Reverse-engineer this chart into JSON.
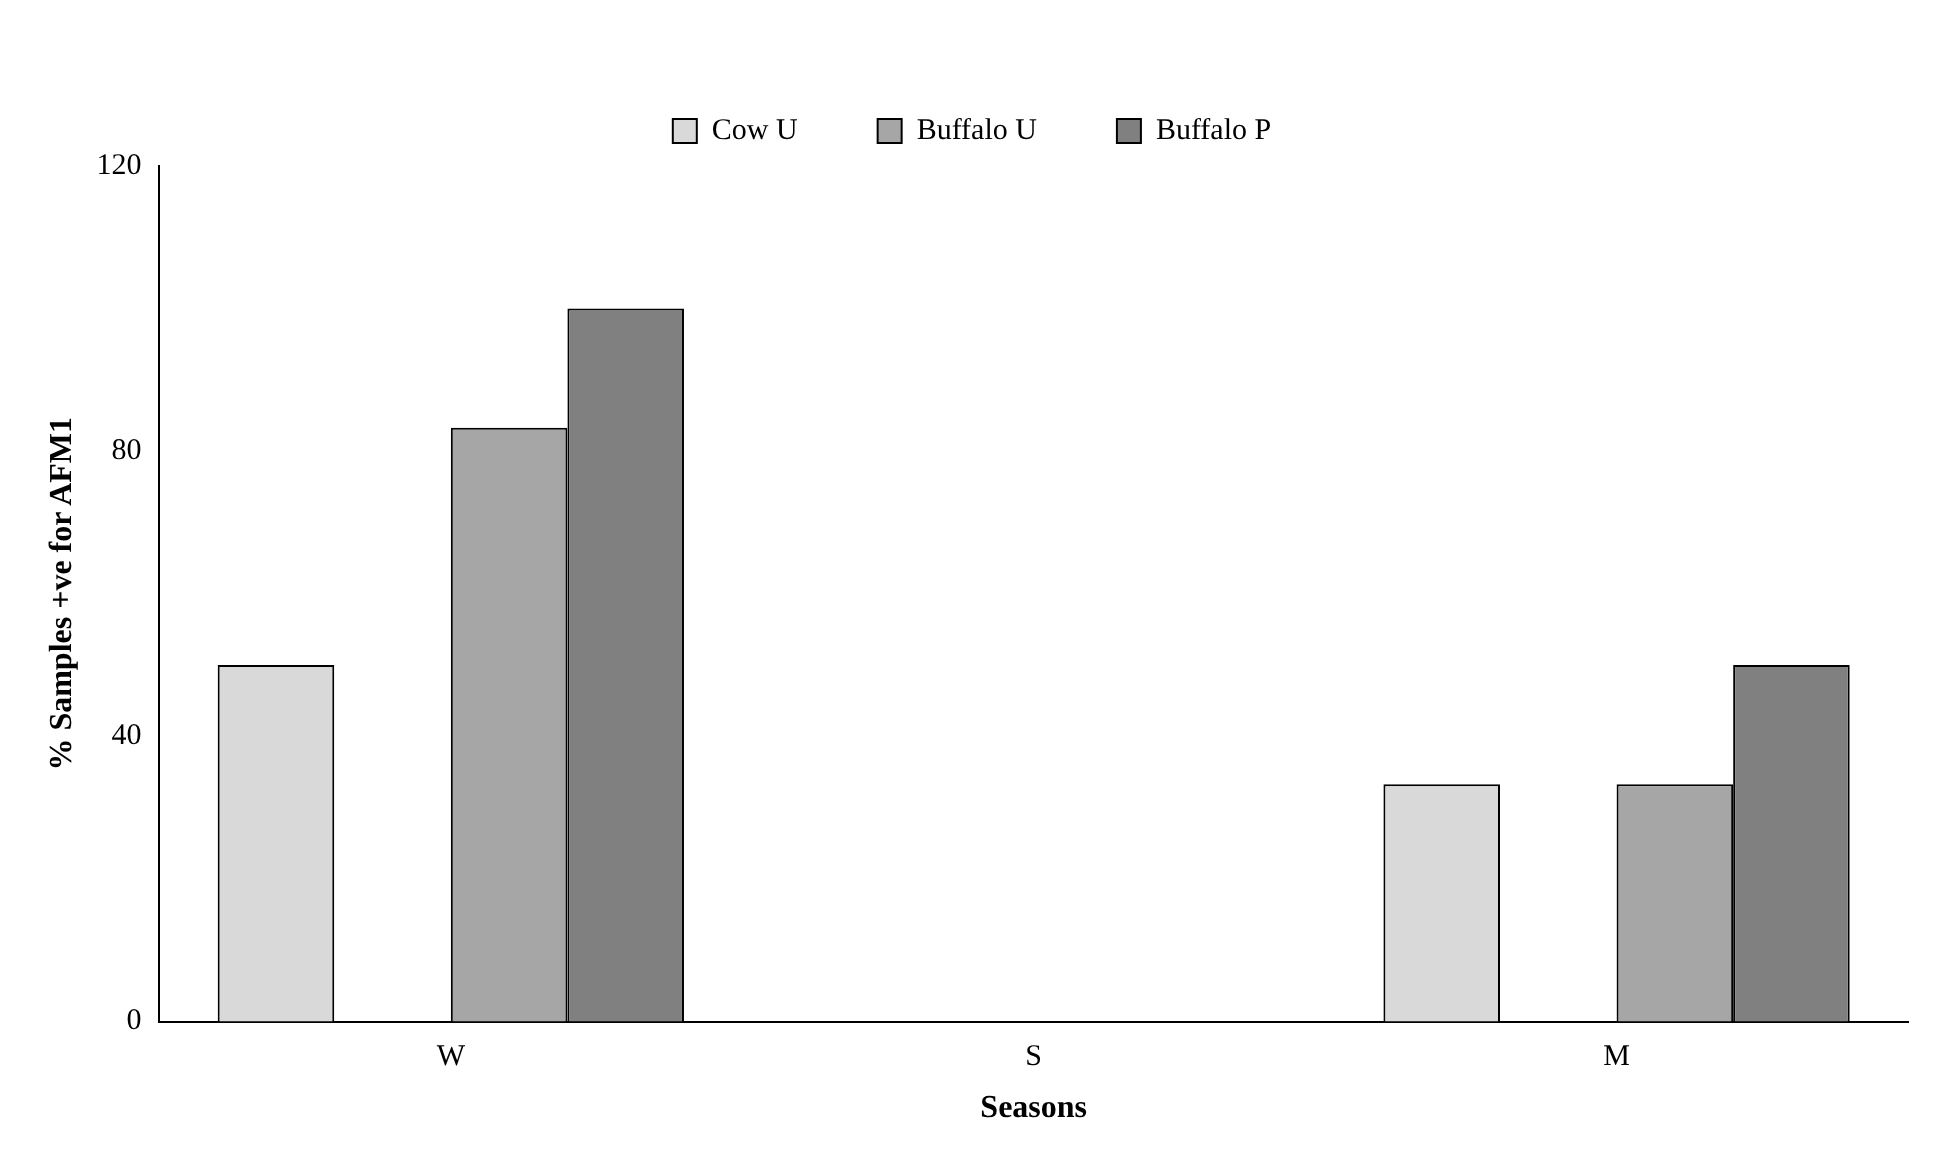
{
  "chart_data": {
    "type": "bar",
    "xlabel": "Seasons",
    "ylabel": "% Samples +ve for AFM1",
    "categories": [
      "W",
      "S",
      "M"
    ],
    "series": [
      {
        "name": "Cow U",
        "color": "#d9d9d9",
        "values": [
          50,
          0,
          33.3
        ]
      },
      {
        "color": "#bfbfbf",
        "values": [
          null,
          null,
          null
        ]
      },
      {
        "name": "Buffalo U",
        "color": "#a6a6a6",
        "values": [
          83.3,
          0,
          33.3
        ]
      },
      {
        "name": "Buffalo P",
        "color": "#808080",
        "values": [
          100,
          0,
          50
        ]
      }
    ],
    "ylim": [
      0,
      120
    ],
    "yticks": [
      0,
      40,
      80,
      120
    ],
    "grid": false,
    "legend": "top"
  }
}
